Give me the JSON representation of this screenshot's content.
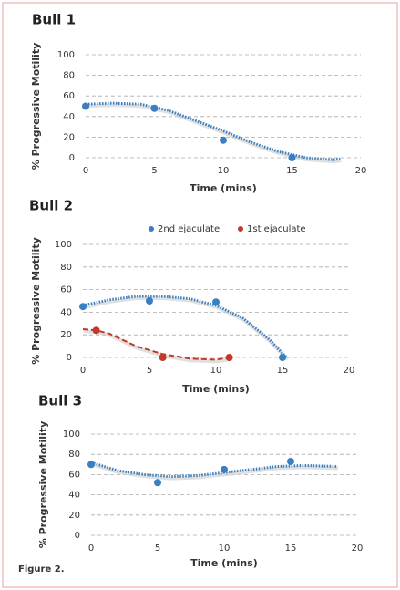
{
  "chart_data": [
    {
      "type": "scatter",
      "title": "Bull 1",
      "x_label": "Time (mins)",
      "y_label": "% Progressive Motility",
      "xlim": [
        0,
        20
      ],
      "ylim": [
        0,
        100
      ],
      "xticks": [
        0,
        5,
        10,
        15,
        20
      ],
      "yticks": [
        0,
        20,
        40,
        60,
        80,
        100
      ],
      "grid": true,
      "series": [
        {
          "color": "#3a7fc0",
          "x": [
            0,
            5,
            10,
            15
          ],
          "values": [
            50,
            48,
            17,
            0
          ],
          "trend_x": [
            0,
            2,
            4,
            6,
            8,
            10,
            12,
            14,
            16,
            18,
            18.5
          ],
          "trend_values": [
            52,
            53,
            52,
            46,
            36,
            26,
            15,
            6,
            0,
            -2,
            -1
          ]
        }
      ]
    },
    {
      "type": "scatter",
      "title": "Bull 2",
      "x_label": "Time (mins)",
      "y_label": "% Progressive Motility",
      "xlim": [
        0,
        20
      ],
      "ylim": [
        0,
        100
      ],
      "xticks": [
        0,
        5,
        10,
        15,
        20
      ],
      "yticks": [
        0,
        20,
        40,
        60,
        80,
        100
      ],
      "grid": true,
      "series": [
        {
          "name": "2nd ejaculate",
          "color": "#3a7fc0",
          "x": [
            0,
            5,
            10,
            15
          ],
          "values": [
            45,
            50,
            49,
            0
          ],
          "trend_x": [
            0,
            2,
            4,
            6,
            8,
            10,
            12,
            14,
            15.3
          ],
          "trend_values": [
            46,
            51,
            54,
            54,
            52,
            46,
            35,
            16,
            0
          ]
        },
        {
          "name": "1st ejaculate",
          "color": "#c0392b",
          "x": [
            1,
            6,
            11
          ],
          "values": [
            24,
            0,
            0
          ],
          "trend_x": [
            0,
            1,
            2,
            4,
            6,
            8,
            10,
            11
          ],
          "trend_values": [
            25,
            24,
            21,
            10,
            3,
            -1,
            -2,
            0
          ]
        }
      ]
    },
    {
      "type": "scatter",
      "title": "Bull 3",
      "x_label": "Time (mins)",
      "y_label": "% Progressive Motility",
      "xlim": [
        0,
        20
      ],
      "ylim": [
        0,
        100
      ],
      "xticks": [
        0,
        5,
        10,
        15,
        20
      ],
      "yticks": [
        0,
        20,
        40,
        60,
        80,
        100
      ],
      "grid": true,
      "series": [
        {
          "color": "#3a7fc0",
          "x": [
            0,
            5,
            10,
            15
          ],
          "values": [
            70,
            52,
            65,
            73
          ],
          "trend_x": [
            0,
            2,
            4,
            6,
            8,
            10,
            12,
            14,
            16,
            18.5
          ],
          "trend_values": [
            72,
            64,
            60,
            58,
            59,
            62,
            65,
            68,
            69,
            68
          ]
        }
      ]
    }
  ],
  "figure_caption": "Figure 2."
}
